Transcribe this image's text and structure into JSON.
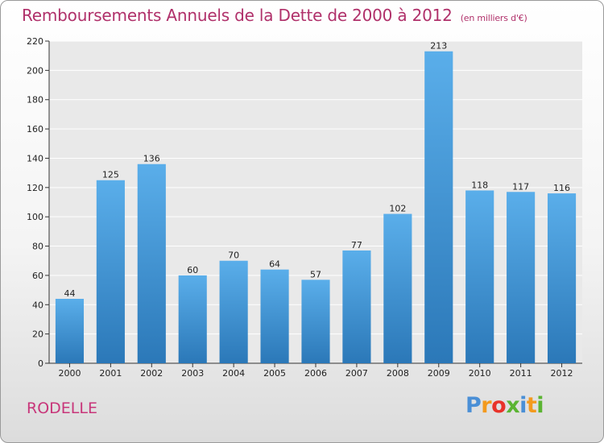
{
  "title": "Remboursements Annuels de la Dette de 2000 à 2012",
  "subtitle": "(en milliers d'€)",
  "commune": "RODELLE",
  "logo": {
    "text": "Proxiti",
    "colors": [
      "#4a8fd6",
      "#f39a1e",
      "#e8332a",
      "#5bb432",
      "#4a8fd6",
      "#f39a1e",
      "#5bb432"
    ]
  },
  "colors": {
    "title": "#b0306a",
    "bar_top": "#5aaeea",
    "bar_bottom": "#2b78b8",
    "grid": "#ffffff",
    "axis": "#333333"
  },
  "chart_data": {
    "type": "bar",
    "title": "Remboursements Annuels de la Dette de 2000 à 2012",
    "categories": [
      "2000",
      "2001",
      "2002",
      "2003",
      "2004",
      "2005",
      "2006",
      "2007",
      "2008",
      "2009",
      "2010",
      "2011",
      "2012"
    ],
    "values": [
      44,
      125,
      136,
      60,
      70,
      64,
      57,
      77,
      102,
      213,
      118,
      117,
      116
    ],
    "ylim": [
      0,
      220
    ],
    "yticks": [
      0,
      20,
      40,
      60,
      80,
      100,
      120,
      140,
      160,
      180,
      200,
      220
    ],
    "grid": true
  }
}
